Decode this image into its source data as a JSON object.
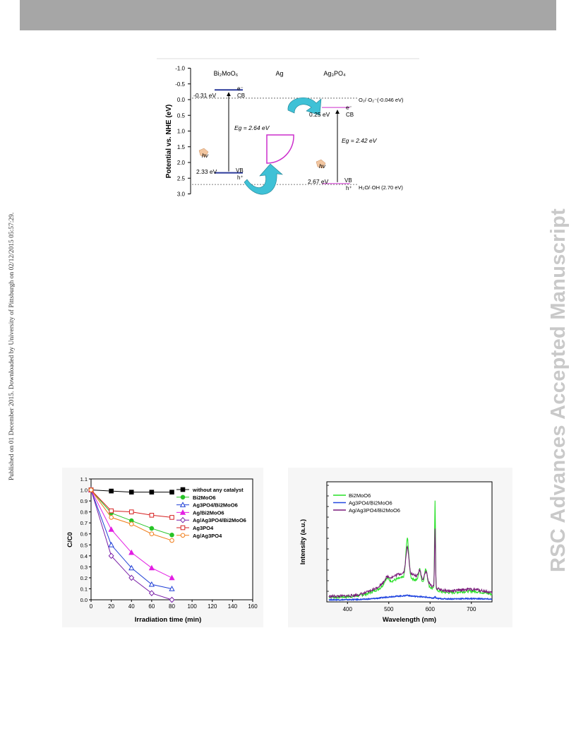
{
  "side_text": "Published on 01 December 2015. Downloaded by University of Pittsburgh on 02/12/2015 05:57:29.",
  "watermark": "RSC Advances Accepted Manuscript",
  "band_diagram": {
    "ylabel": "Potential vs. NHE (eV)",
    "ticks": [
      "-1.0",
      "-0.5",
      "0.0",
      "0.5",
      "1.0",
      "1.5",
      "2.0",
      "2.5",
      "3.0"
    ],
    "tick_values": [
      -1.0,
      -0.5,
      0.0,
      0.5,
      1.0,
      1.5,
      2.0,
      2.5,
      3.0
    ],
    "labels": {
      "bi2moo6": "Bi₂MoO₆",
      "ag": "Ag",
      "ag3po4": "Ag₃PO₄",
      "bi_cb_value": "-0.31 eV",
      "bi_vb_value": "2.33 eV",
      "ag3_cb_value": "0.25 eV",
      "ag3_vb_value": "2.67 eV",
      "cb": "CB",
      "vb": "VB",
      "electron": "e⁻",
      "hole": "h⁺",
      "bi_eg": "Eg = 2.64 eV",
      "ag3_eg": "Eg = 2.42 eV",
      "hv": "hv",
      "o2_ref": "O₂/·O₂⁻(-0.046 eV)",
      "h2o_ref": "H₂O/·OH (2.70 eV)"
    },
    "levels": {
      "bi_cb": -0.31,
      "bi_vb": 2.33,
      "ag3_cb": 0.25,
      "ag3_vb": 2.67,
      "o2_ref": -0.046,
      "h2o_ref": 2.7
    },
    "colors": {
      "bi_level": "#2b3a9a",
      "ag3_level": "#cc2fcc",
      "arrow": "#3fc1d6",
      "ag_shape": "#cc2fcc"
    }
  },
  "chart_data": [
    {
      "type": "line",
      "xlabel": "Irradiation time (min)",
      "ylabel": "C/C0",
      "xlim": [
        0,
        160
      ],
      "ylim": [
        0.0,
        1.1
      ],
      "xticks": [
        0,
        20,
        40,
        60,
        80,
        100,
        120,
        140,
        160
      ],
      "yticks": [
        0.0,
        0.1,
        0.2,
        0.3,
        0.4,
        0.5,
        0.6,
        0.7,
        0.8,
        0.9,
        1.0,
        1.1
      ],
      "legend_position": "top-right",
      "x": [
        0,
        20,
        40,
        60,
        80
      ],
      "series": [
        {
          "name": "without any catalyst",
          "color": "#000000",
          "marker": "square-filled",
          "values": [
            1.0,
            0.99,
            0.98,
            0.98,
            0.98
          ]
        },
        {
          "name": "Bi2MoO6",
          "color": "#27c427",
          "marker": "circle-filled",
          "values": [
            1.0,
            0.79,
            0.72,
            0.65,
            0.59
          ]
        },
        {
          "name": "Ag3PO4/Bi2MoO6",
          "color": "#1f3fd6",
          "marker": "triangle-open",
          "values": [
            1.0,
            0.5,
            0.29,
            0.14,
            0.1
          ]
        },
        {
          "name": "Ag/Bi2MoO6",
          "color": "#e31ee3",
          "marker": "triangle-filled",
          "values": [
            1.0,
            0.64,
            0.43,
            0.29,
            0.2
          ]
        },
        {
          "name": "Ag/Ag3PO4/Bi2MoO6",
          "color": "#7a1fa8",
          "marker": "diamond-open",
          "values": [
            1.0,
            0.4,
            0.2,
            0.06,
            0.0
          ]
        },
        {
          "name": "Ag3PO4",
          "color": "#d62020",
          "marker": "square-open",
          "values": [
            1.0,
            0.81,
            0.8,
            0.77,
            0.75
          ]
        },
        {
          "name": "Ag/Ag3PO4",
          "color": "#f07d1a",
          "marker": "circle-open",
          "values": [
            1.0,
            0.75,
            0.69,
            0.6,
            0.54
          ]
        }
      ]
    },
    {
      "type": "line",
      "xlabel": "Wavelength (nm)",
      "ylabel": "Intensity (a.u.)",
      "xlim": [
        350,
        750
      ],
      "xticks": [
        400,
        500,
        600,
        700
      ],
      "legend_position": "top-left",
      "series": [
        {
          "name": "Bi2MoO6",
          "color": "#27e027"
        },
        {
          "name": "Ag3PO4/Bi2MoO6",
          "color": "#2448e0"
        },
        {
          "name": "Ag/Ag3PO4/Bi2MoO6",
          "color": "#7a1a7a"
        }
      ]
    }
  ]
}
